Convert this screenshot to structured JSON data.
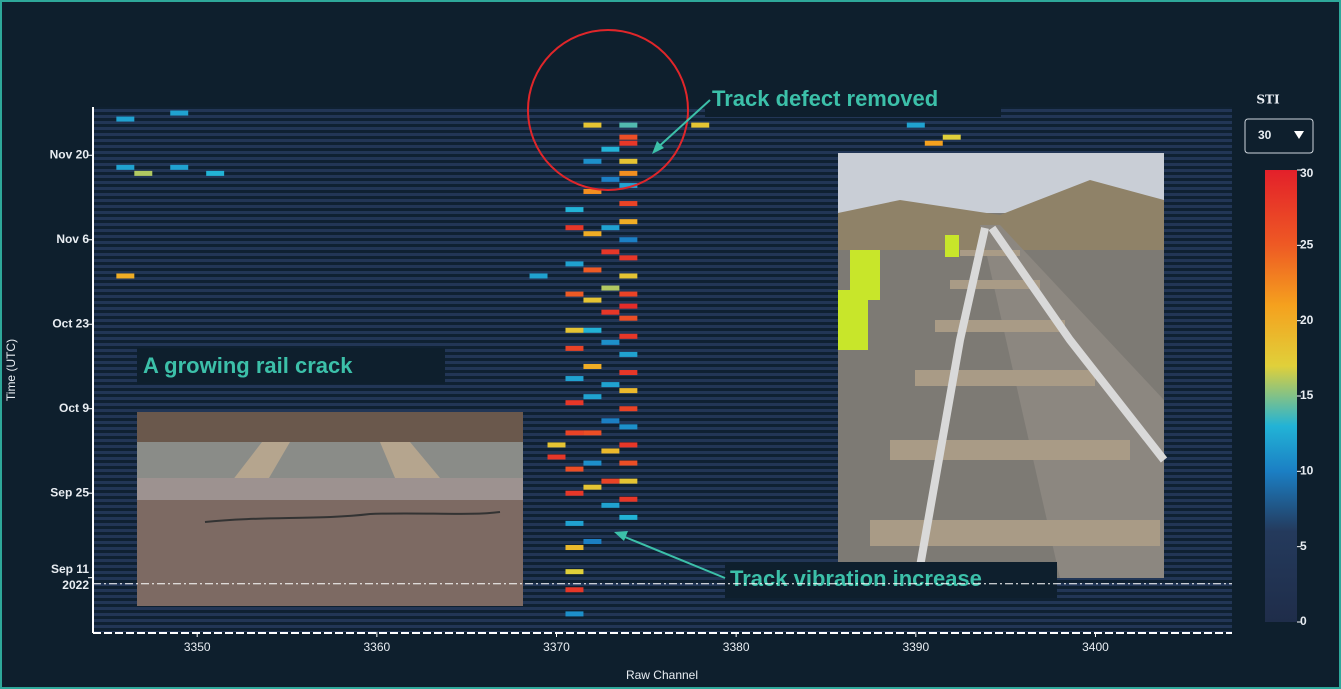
{
  "chart_data": {
    "type": "heatmap",
    "xlabel": "Raw Channel",
    "ylabel": "Time (UTC)",
    "xlim": [
      3344.2,
      3407.6
    ],
    "xticks": [
      3350,
      3360,
      3370,
      3380,
      3390,
      3400
    ],
    "ylim": [
      "2022-09-02",
      "2022-11-28"
    ],
    "yticks": [
      {
        "value": "2022-09-11",
        "label": "Sep 11"
      },
      {
        "value": "2022-09-25",
        "label": "Sep 25"
      },
      {
        "value": "2022-10-09",
        "label": "Oct 9"
      },
      {
        "value": "2022-10-23",
        "label": "Oct 23"
      },
      {
        "value": "2022-11-06",
        "label": "Nov 6"
      },
      {
        "value": "2022-11-20",
        "label": "Nov 20"
      }
    ],
    "year_label": "2022",
    "reference_date": "2022-09-10",
    "colorbar": {
      "title": "STI",
      "range": [
        0,
        30
      ],
      "ticks": [
        0,
        5,
        10,
        15,
        20,
        25,
        30
      ],
      "colorscale": [
        [
          0,
          "#1f2d4a"
        ],
        [
          6,
          "#243a5c"
        ],
        [
          10,
          "#1b7fc4"
        ],
        [
          13,
          "#22b3d6"
        ],
        [
          17,
          "#e0d03a"
        ],
        [
          21,
          "#f5a11e"
        ],
        [
          25,
          "#ee5a24"
        ],
        [
          30,
          "#e3202a"
        ]
      ]
    },
    "dropdown_value": "30",
    "annotations": [
      "Track defect removed",
      "A growing rail crack",
      "Track vibration increase"
    ],
    "cells": [
      [
        3374,
        "2022-11-25",
        14
      ],
      [
        3374,
        "2022-11-23",
        26
      ],
      [
        3374,
        "2022-11-22",
        28
      ],
      [
        3374,
        "2022-11-19",
        18
      ],
      [
        3374,
        "2022-11-17",
        22
      ],
      [
        3374,
        "2022-11-15",
        12
      ],
      [
        3374,
        "2022-11-12",
        27
      ],
      [
        3374,
        "2022-11-09",
        20
      ],
      [
        3374,
        "2022-11-06",
        10
      ],
      [
        3374,
        "2022-11-03",
        28
      ],
      [
        3374,
        "2022-10-31",
        18
      ],
      [
        3374,
        "2022-10-28",
        27
      ],
      [
        3374,
        "2022-10-26",
        29
      ],
      [
        3374,
        "2022-10-24",
        26
      ],
      [
        3374,
        "2022-10-21",
        28
      ],
      [
        3374,
        "2022-10-18",
        12
      ],
      [
        3374,
        "2022-10-15",
        28
      ],
      [
        3374,
        "2022-10-12",
        19
      ],
      [
        3374,
        "2022-10-09",
        27
      ],
      [
        3374,
        "2022-10-06",
        11
      ],
      [
        3374,
        "2022-10-03",
        28
      ],
      [
        3374,
        "2022-09-30",
        26
      ],
      [
        3374,
        "2022-09-27",
        18
      ],
      [
        3374,
        "2022-09-24",
        28
      ],
      [
        3374,
        "2022-09-21",
        13
      ],
      [
        3373,
        "2022-11-21",
        13
      ],
      [
        3373,
        "2022-11-16",
        10
      ],
      [
        3373,
        "2022-11-08",
        12
      ],
      [
        3373,
        "2022-11-04",
        28
      ],
      [
        3373,
        "2022-10-29",
        16
      ],
      [
        3373,
        "2022-10-25",
        28
      ],
      [
        3373,
        "2022-10-20",
        11
      ],
      [
        3373,
        "2022-10-13",
        12
      ],
      [
        3373,
        "2022-10-07",
        10
      ],
      [
        3373,
        "2022-10-02",
        19
      ],
      [
        3373,
        "2022-09-27",
        27
      ],
      [
        3373,
        "2022-09-23",
        12
      ],
      [
        3372,
        "2022-11-25",
        18
      ],
      [
        3372,
        "2022-11-19",
        11
      ],
      [
        3372,
        "2022-11-14",
        22
      ],
      [
        3372,
        "2022-11-07",
        20
      ],
      [
        3372,
        "2022-11-01",
        25
      ],
      [
        3372,
        "2022-10-27",
        18
      ],
      [
        3372,
        "2022-10-22",
        13
      ],
      [
        3372,
        "2022-10-16",
        20
      ],
      [
        3372,
        "2022-10-11",
        12
      ],
      [
        3372,
        "2022-10-05",
        26
      ],
      [
        3372,
        "2022-09-30",
        11
      ],
      [
        3372,
        "2022-09-26",
        18
      ],
      [
        3372,
        "2022-09-17",
        10
      ],
      [
        3371,
        "2022-11-11",
        13
      ],
      [
        3371,
        "2022-11-08",
        28
      ],
      [
        3371,
        "2022-11-02",
        12
      ],
      [
        3371,
        "2022-10-28",
        25
      ],
      [
        3371,
        "2022-10-22",
        18
      ],
      [
        3371,
        "2022-10-19",
        27
      ],
      [
        3371,
        "2022-10-14",
        12
      ],
      [
        3371,
        "2022-10-10",
        28
      ],
      [
        3371,
        "2022-10-05",
        27
      ],
      [
        3371,
        "2022-09-29",
        26
      ],
      [
        3371,
        "2022-09-25",
        28
      ],
      [
        3371,
        "2022-09-20",
        12
      ],
      [
        3371,
        "2022-09-16",
        19
      ],
      [
        3371,
        "2022-09-12",
        17
      ],
      [
        3371,
        "2022-09-09",
        28
      ],
      [
        3371,
        "2022-09-05",
        11
      ],
      [
        3370,
        "2022-10-01",
        28
      ],
      [
        3370,
        "2022-10-03",
        18
      ],
      [
        3346,
        "2022-11-26",
        12
      ],
      [
        3346,
        "2022-11-18",
        12
      ],
      [
        3347,
        "2022-11-17",
        16
      ],
      [
        3349,
        "2022-11-18",
        12
      ],
      [
        3351,
        "2022-11-17",
        13
      ],
      [
        3346,
        "2022-10-31",
        20
      ],
      [
        3369,
        "2022-10-31",
        12
      ],
      [
        3390,
        "2022-11-25",
        12
      ],
      [
        3392,
        "2022-11-23",
        17
      ],
      [
        3391,
        "2022-11-22",
        21
      ],
      [
        3349,
        "2022-11-27",
        12
      ],
      [
        3385,
        "2022-11-27",
        14
      ],
      [
        3378,
        "2022-11-25",
        18
      ]
    ]
  }
}
